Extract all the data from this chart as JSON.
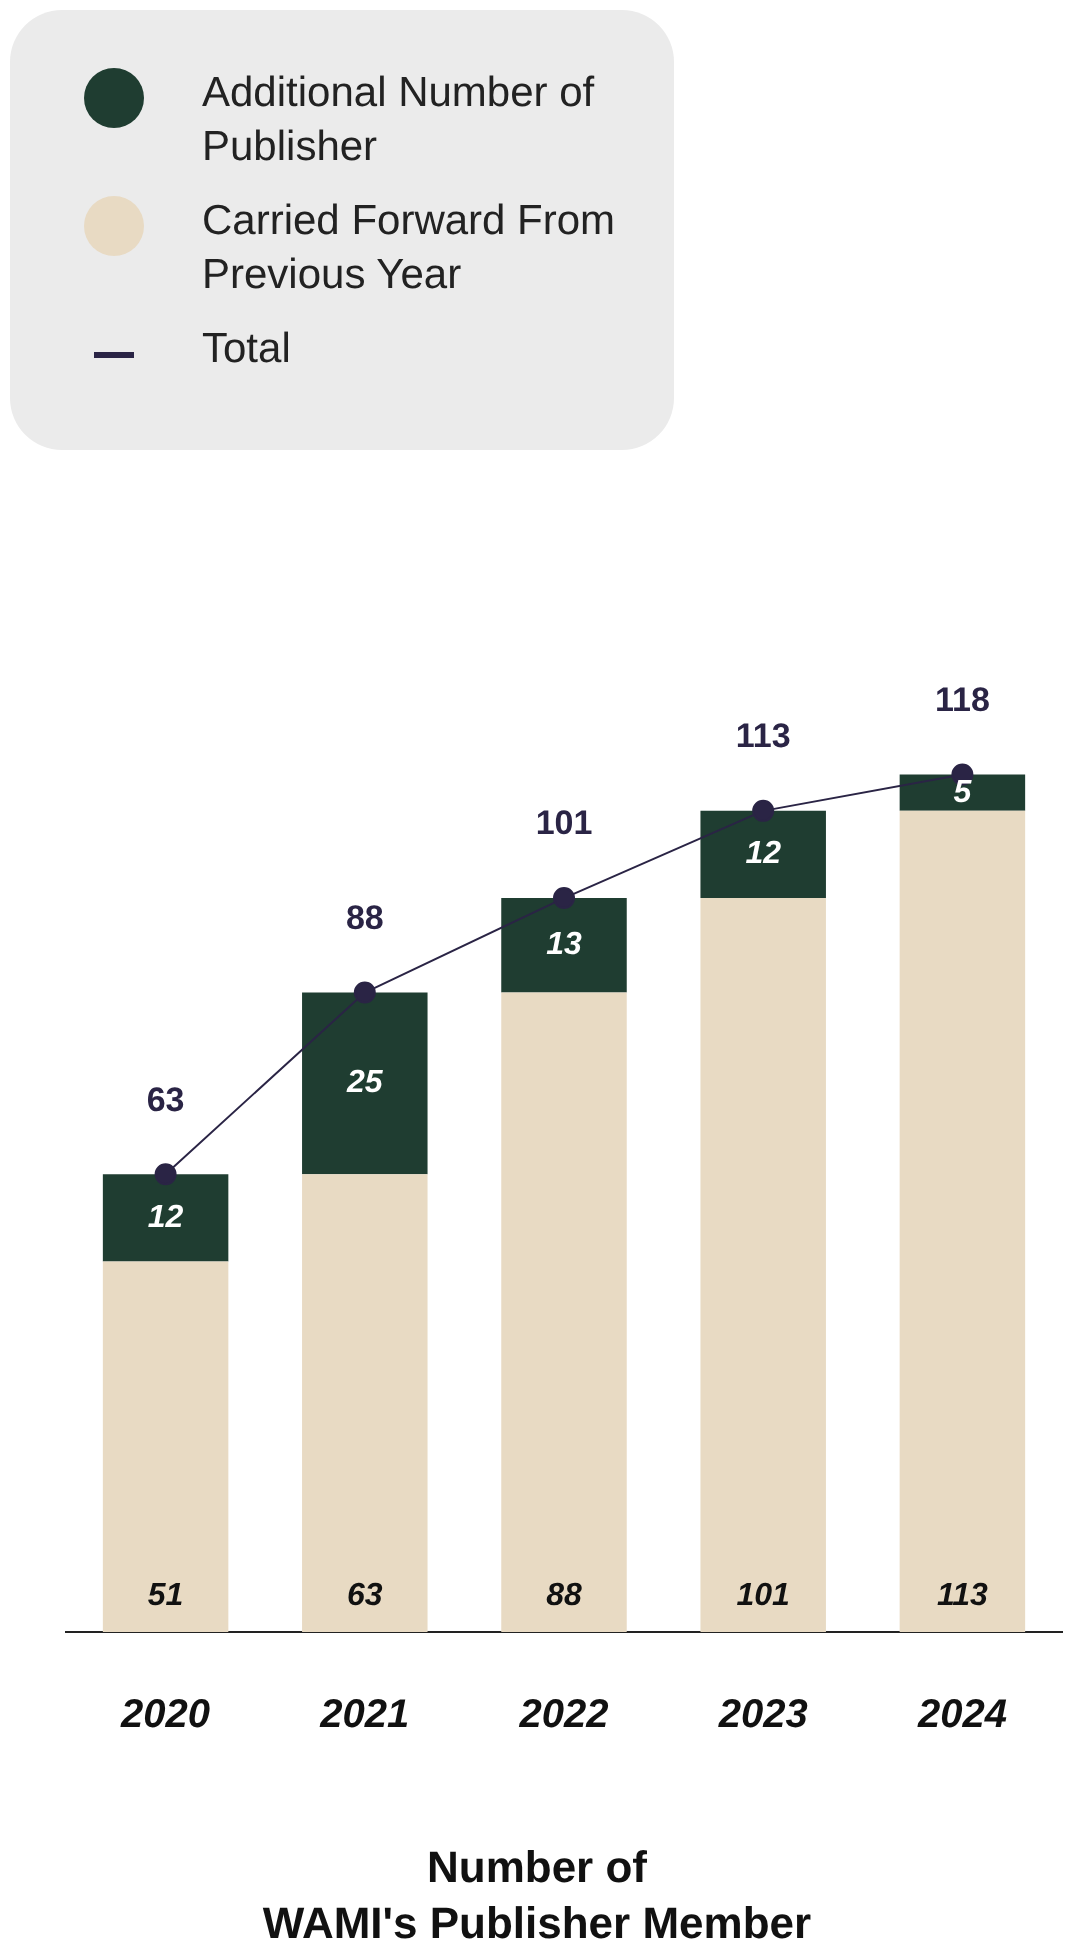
{
  "chart_data": {
    "type": "bar",
    "stacked": true,
    "xlabel": "Number of\nWAMI's Publisher Member",
    "categories": [
      "2020",
      "2021",
      "2022",
      "2023",
      "2024"
    ],
    "legend": "top left",
    "data_labels": true,
    "grid": false,
    "marker": "circle",
    "line_style": "solid",
    "series": [
      {
        "name": "Carried Forward From Previous Year",
        "color": "#e8dac3",
        "values": [
          51,
          63,
          88,
          101,
          113
        ]
      },
      {
        "name": "Additional Number of Publisher",
        "color": "#1f3d31",
        "values": [
          12,
          25,
          13,
          12,
          5
        ]
      },
      {
        "name": "Total",
        "type": "line",
        "color": "#2a2445",
        "values": [
          63,
          88,
          101,
          113,
          118
        ]
      }
    ]
  }
}
